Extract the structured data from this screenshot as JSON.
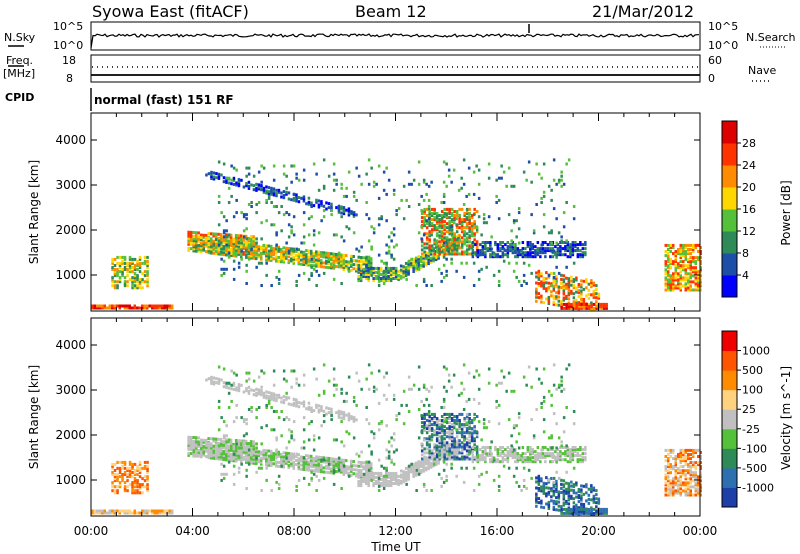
{
  "header": {
    "station": "Syowa East (fitACF)",
    "beam": "Beam 12",
    "date": "21/Mar/2012"
  },
  "top_panels": {
    "nsky_label": "N.Sky",
    "nsky_ticks": [
      "10^5",
      "10^0"
    ],
    "nsearch_label": "N.Search",
    "nsearch_ticks": [
      "10^5",
      "10^0"
    ],
    "freq_label_1": "Freq.",
    "freq_label_2": "[MHz]",
    "freq_ticks": [
      "18",
      "8"
    ],
    "nave_label": "Nave",
    "nave_ticks": [
      "60",
      "0"
    ],
    "cpid_label": "CPID",
    "cpid_text": "normal (fast) 151 RF"
  },
  "chart_data": [
    {
      "type": "heatmap",
      "name": "power",
      "ylabel": "Slant Range [km]",
      "yticks": [
        "1000",
        "2000",
        "3000",
        "4000"
      ],
      "ylim": [
        200,
        4600
      ],
      "xlim_hours": [
        0,
        24
      ],
      "colorbar": {
        "label": "Power [dB]",
        "ticks": [
          "4",
          "8",
          "12",
          "16",
          "20",
          "24",
          "28"
        ],
        "colors": [
          "#0000ff",
          "#1d4ea8",
          "#2e8b57",
          "#55c03a",
          "#ffd700",
          "#ff8c00",
          "#ff3300",
          "#dd0000"
        ]
      }
    },
    {
      "type": "heatmap",
      "name": "velocity",
      "ylabel": "Slant Range [km]",
      "yticks": [
        "1000",
        "2000",
        "3000",
        "4000"
      ],
      "ylim": [
        200,
        4600
      ],
      "xlim_hours": [
        0,
        24
      ],
      "colorbar": {
        "label": "Velocity [m s^-1]",
        "ticks": [
          "1000",
          "500",
          "100",
          "25",
          "-25",
          "-100",
          "-500",
          "-1000"
        ],
        "colors": [
          "#1d3fa8",
          "#2e6fb0",
          "#2e8b57",
          "#55c03a",
          "#c0c0c0",
          "#ffd27f",
          "#ff8c00",
          "#ff5500",
          "#ee0000"
        ]
      }
    }
  ],
  "x_axis": {
    "ticks": [
      "00:00",
      "04:00",
      "08:00",
      "12:00",
      "16:00",
      "20:00",
      "00:00"
    ],
    "label": "Time UT"
  }
}
